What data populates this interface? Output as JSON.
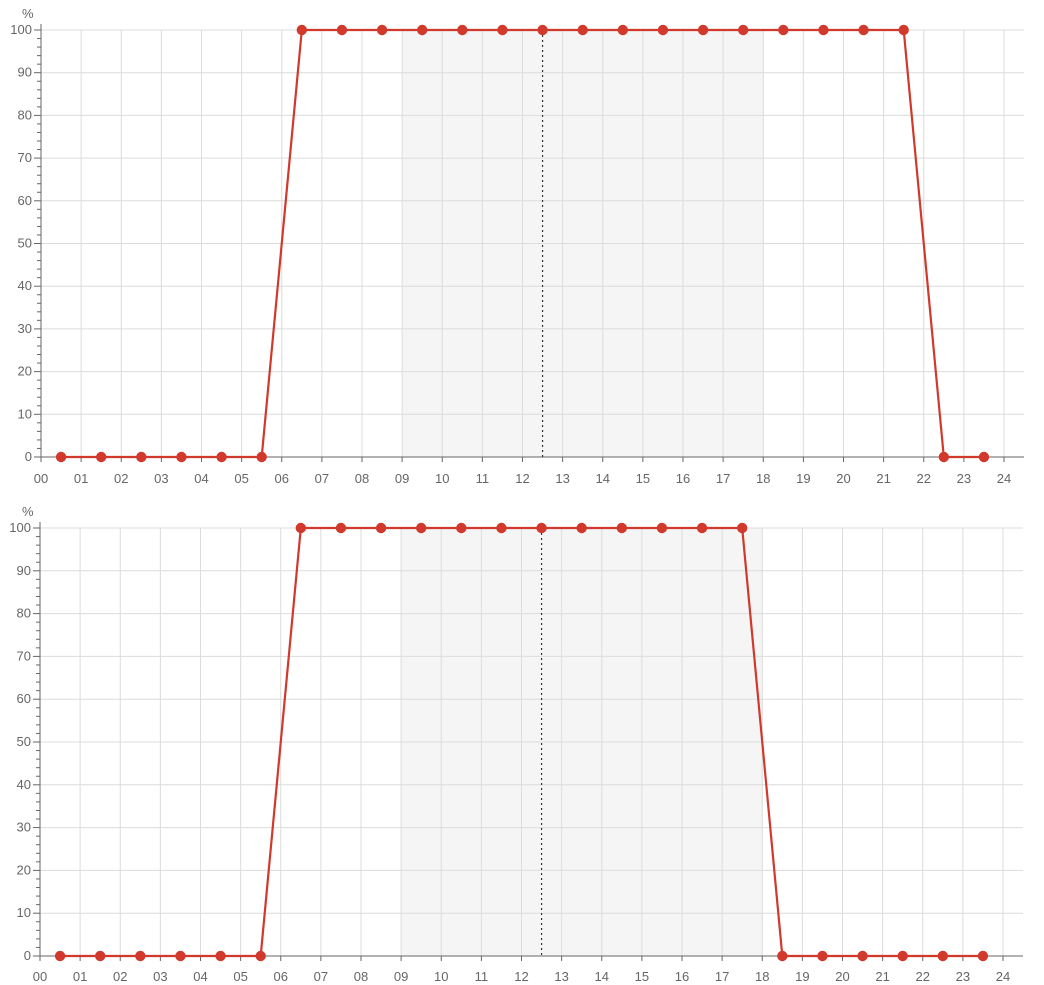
{
  "chart_data": [
    {
      "type": "line",
      "ylabel": "%",
      "xlabel": "",
      "title": "",
      "grid": true,
      "xlim": [
        0,
        24
      ],
      "ylim": [
        0,
        100
      ],
      "x_ticks": [
        "00",
        "01",
        "02",
        "03",
        "04",
        "05",
        "06",
        "07",
        "08",
        "09",
        "10",
        "11",
        "12",
        "13",
        "14",
        "15",
        "16",
        "17",
        "18",
        "19",
        "20",
        "21",
        "22",
        "23",
        "24"
      ],
      "y_ticks": [
        "0",
        "10",
        "20",
        "30",
        "40",
        "50",
        "60",
        "70",
        "80",
        "90",
        "100"
      ],
      "shaded_range": [
        9,
        18
      ],
      "current_marker_x": 12.5,
      "x": [
        0.5,
        1.5,
        2.5,
        3.5,
        4.5,
        5.5,
        6.5,
        7.5,
        8.5,
        9.5,
        10.5,
        11.5,
        12.5,
        13.5,
        14.5,
        15.5,
        16.5,
        17.5,
        18.5,
        19.5,
        20.5,
        21.5,
        22.5,
        23.5
      ],
      "series": [
        {
          "color": "#d0392b",
          "values": [
            0,
            0,
            0,
            0,
            0,
            0,
            100,
            100,
            100,
            100,
            100,
            100,
            100,
            100,
            100,
            100,
            100,
            100,
            100,
            100,
            100,
            100,
            0,
            0
          ]
        }
      ]
    },
    {
      "type": "line",
      "ylabel": "%",
      "xlabel": "",
      "title": "",
      "grid": true,
      "xlim": [
        0,
        24
      ],
      "ylim": [
        0,
        100
      ],
      "x_ticks": [
        "00",
        "01",
        "02",
        "03",
        "04",
        "05",
        "06",
        "07",
        "08",
        "09",
        "10",
        "11",
        "12",
        "13",
        "14",
        "15",
        "16",
        "17",
        "18",
        "19",
        "20",
        "21",
        "22",
        "23",
        "24"
      ],
      "y_ticks": [
        "0",
        "10",
        "20",
        "30",
        "40",
        "50",
        "60",
        "70",
        "80",
        "90",
        "100"
      ],
      "shaded_range": [
        9,
        18
      ],
      "current_marker_x": 12.5,
      "x": [
        0.5,
        1.5,
        2.5,
        3.5,
        4.5,
        5.5,
        6.5,
        7.5,
        8.5,
        9.5,
        10.5,
        11.5,
        12.5,
        13.5,
        14.5,
        15.5,
        16.5,
        17.5,
        18.5,
        19.5,
        20.5,
        21.5,
        22.5,
        23.5
      ],
      "series": [
        {
          "color": "#d0392b",
          "values": [
            0,
            0,
            0,
            0,
            0,
            0,
            100,
            100,
            100,
            100,
            100,
            100,
            100,
            100,
            100,
            100,
            100,
            100,
            0,
            0,
            0,
            0,
            0,
            0
          ]
        }
      ]
    }
  ],
  "colors": {
    "line": "#d0392b",
    "grid": "#dcdcdc",
    "axis": "#666666",
    "shade": "#f5f5f5"
  }
}
